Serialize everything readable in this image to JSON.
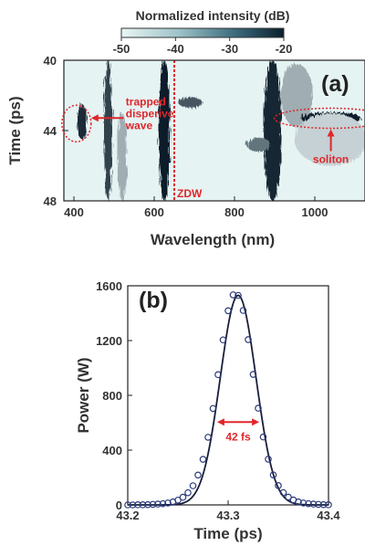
{
  "chart_data": [
    {
      "type": "heatmap",
      "panel_label": "(a)",
      "colorbar": {
        "title": "Normalized intensity (dB)",
        "ticks": [
          "-50",
          "-40",
          "-30",
          "-20"
        ],
        "range": [
          -50,
          -20
        ],
        "colors": [
          "#eaf5f5",
          "#0b1e2c"
        ]
      },
      "xlabel": "Wavelength (nm)",
      "ylabel": "Time (ps)",
      "xlim": [
        375,
        1125
      ],
      "ylim": [
        40,
        48
      ],
      "xticks": [
        400,
        600,
        800,
        1000
      ],
      "yticks": [
        40,
        44,
        48
      ],
      "zdw": {
        "x": 650,
        "label": "ZDW"
      },
      "features": [
        {
          "x_center": 420,
          "x_halfwidth": 12,
          "y_center": 43.5,
          "y_halfwidth": 1.0,
          "level": -22
        },
        {
          "x_center": 485,
          "x_halfwidth": 10,
          "y_center": 44,
          "y_halfwidth": 4,
          "level": -25
        },
        {
          "x_center": 520,
          "x_halfwidth": 12,
          "y_center": 45.5,
          "y_halfwidth": 2.5,
          "level": -40
        },
        {
          "x_center": 625,
          "x_halfwidth": 14,
          "y_center": 44,
          "y_halfwidth": 4,
          "level": -20
        },
        {
          "x_center": 690,
          "x_halfwidth": 30,
          "y_center": 42.4,
          "y_halfwidth": 0.3,
          "level": -28
        },
        {
          "x_center": 895,
          "x_halfwidth": 22,
          "y_center": 44,
          "y_halfwidth": 4,
          "level": -21
        },
        {
          "x_center": 860,
          "x_halfwidth": 30,
          "y_center": 44.8,
          "y_halfwidth": 0.4,
          "level": -32
        },
        {
          "x_center": 955,
          "x_halfwidth": 40,
          "y_center": 42,
          "y_halfwidth": 1.8,
          "level": -40
        },
        {
          "x_center": 1040,
          "x_halfwidth": 75,
          "y_center": 43.3,
          "y_halfwidth": 0.35,
          "level": -20
        },
        {
          "x_center": 1040,
          "x_halfwidth": 90,
          "y_center": 44.5,
          "y_halfwidth": 1.5,
          "level": -45
        }
      ],
      "annotations": [
        {
          "text": "trapped disperive wave",
          "lines": [
            "trapped",
            "disperive",
            "wave"
          ],
          "x": 420,
          "y": 43.6
        },
        {
          "text": "soliton",
          "x": 1040,
          "y": 43.3
        }
      ]
    },
    {
      "type": "scatter",
      "panel_label": "(b)",
      "xlabel": "Time (ps)",
      "ylabel": "Power (W)",
      "xlim": [
        43.2,
        43.4
      ],
      "ylim": [
        0,
        1600
      ],
      "xticks": [
        "43.2",
        "43.3",
        "43.4"
      ],
      "yticks": [
        "0",
        "400",
        "800",
        "1200",
        "1600"
      ],
      "peak": {
        "x": 43.31,
        "y": 1530
      },
      "fwhm_fs": 42,
      "fwhm_label": "42 fs",
      "x": [
        43.2,
        43.205,
        43.21,
        43.215,
        43.22,
        43.225,
        43.23,
        43.235,
        43.24,
        43.245,
        43.25,
        43.255,
        43.26,
        43.265,
        43.27,
        43.275,
        43.28,
        43.285,
        43.29,
        43.295,
        43.3,
        43.305,
        43.31,
        43.315,
        43.32,
        43.325,
        43.33,
        43.335,
        43.34,
        43.345,
        43.35,
        43.355,
        43.36,
        43.365,
        43.37,
        43.375,
        43.38,
        43.385,
        43.39,
        43.395,
        43.4
      ],
      "series": [
        {
          "values": [
            0,
            0,
            1,
            1,
            2,
            4,
            6,
            9,
            14,
            22,
            35,
            56,
            89,
            140,
            218,
            333,
            494,
            704,
            951,
            1205,
            1418,
            1534,
            1530,
            1420,
            1207,
            953,
            706,
            496,
            334,
            219,
            141,
            90,
            57,
            36,
            22,
            14,
            9,
            6,
            4,
            2,
            1
          ],
          "style": "markers"
        },
        {
          "values": [
            0,
            0,
            1,
            1,
            2,
            4,
            6,
            9,
            14,
            22,
            35,
            56,
            89,
            140,
            218,
            333,
            494,
            704,
            951,
            1205,
            1418,
            1534,
            1530,
            1420,
            1207,
            953,
            706,
            496,
            334,
            219,
            141,
            90,
            57,
            36,
            22,
            14,
            9,
            6,
            4,
            2,
            1
          ],
          "style": "line"
        }
      ]
    }
  ]
}
